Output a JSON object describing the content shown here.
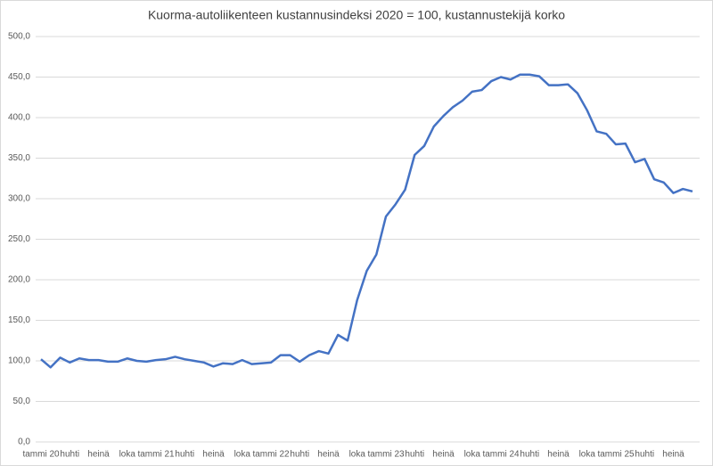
{
  "chart_data": {
    "type": "line",
    "title": "Kuorma-autoliikenteen kustannusindeksi 2020 = 100, kustannustekijä korko",
    "categories": [
      "tammi 20",
      null,
      null,
      "huhti",
      null,
      null,
      "heinä",
      null,
      null,
      "loka",
      null,
      null,
      "tammi 21",
      null,
      null,
      "huhti",
      null,
      null,
      "heinä",
      null,
      null,
      "loka",
      null,
      null,
      "tammi 22",
      null,
      null,
      "huhti",
      null,
      null,
      "heinä",
      null,
      null,
      "loka",
      null,
      null,
      "tammi 23",
      null,
      null,
      "huhti",
      null,
      null,
      "heinä",
      null,
      null,
      "loka",
      null,
      null,
      "tammi 24",
      null,
      null,
      "huhti",
      null,
      null,
      "heinä",
      null,
      null,
      "loka",
      null,
      null,
      "tammi 25",
      null,
      null,
      "huhti",
      null,
      null,
      "heinä",
      null,
      null
    ],
    "series": [
      {
        "name": "Kustannustekijä korko",
        "color": "#4472c4",
        "values": [
          102,
          92,
          104,
          98,
          103,
          101,
          101,
          99,
          99,
          103,
          100,
          99,
          101,
          102,
          105,
          102,
          100,
          98,
          93,
          97,
          96,
          101,
          96,
          97,
          98,
          107,
          107,
          99,
          107,
          112,
          109,
          132,
          125,
          175,
          211,
          231,
          278,
          293,
          311,
          354,
          365,
          389,
          402,
          413,
          421,
          432,
          434,
          445,
          450,
          447,
          453,
          453,
          451,
          440,
          440,
          441,
          430,
          409,
          383,
          380,
          367,
          368,
          345,
          349,
          324,
          320,
          307,
          312,
          309
        ]
      }
    ],
    "ylim": [
      0,
      500
    ],
    "yticks": [
      {
        "value": 0,
        "label": "0,0"
      },
      {
        "value": 50,
        "label": "50,0"
      },
      {
        "value": 100,
        "label": "100,0"
      },
      {
        "value": 150,
        "label": "150,0"
      },
      {
        "value": 200,
        "label": "200,0"
      },
      {
        "value": 250,
        "label": "250,0"
      },
      {
        "value": 300,
        "label": "300,0"
      },
      {
        "value": 350,
        "label": "350,0"
      },
      {
        "value": 400,
        "label": "400,0"
      },
      {
        "value": 450,
        "label": "450,0"
      },
      {
        "value": 500,
        "label": "500,0"
      }
    ],
    "grid": true
  }
}
